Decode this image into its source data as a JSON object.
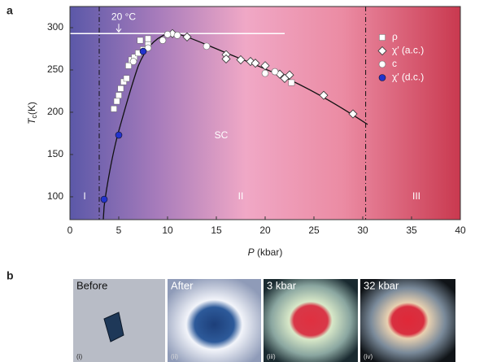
{
  "chart_data": {
    "type": "scatter",
    "panel_a_label": "a",
    "panel_b_label": "b",
    "xlabel": {
      "symbol": "P",
      "unit": "(kbar)"
    },
    "ylabel": {
      "symbol": "T",
      "subscript": "c",
      "unit": "(K)"
    },
    "xlim": [
      0,
      40
    ],
    "ylim": [
      73,
      325
    ],
    "xticks": [
      0,
      5,
      10,
      15,
      20,
      25,
      30,
      35,
      40
    ],
    "yticks": [
      100,
      150,
      200,
      250,
      300
    ],
    "phase_boundaries": [
      3,
      30.3
    ],
    "reference_line": {
      "label": "20 °C",
      "value": 293
    },
    "annotation": "SC",
    "regions": [
      "I",
      "II",
      "III"
    ],
    "series": [
      {
        "name": "ρ",
        "marker": "square",
        "color": "#ffffff",
        "x": [
          4.5,
          4.8,
          5.0,
          5.2,
          5.5,
          5.8,
          6.0,
          6.3,
          6.6,
          7.0,
          7.2,
          7.5,
          8.0,
          8.0,
          22.7
        ],
        "values": [
          204,
          213,
          220,
          228,
          236,
          240,
          255,
          262,
          265,
          270,
          285,
          274,
          287,
          280,
          235
        ]
      },
      {
        "name": "χ′ (a.c.)",
        "marker": "diamond",
        "color": "#ffffff",
        "x": [
          10.5,
          12,
          16,
          16,
          17.5,
          18.5,
          19,
          20,
          21.5,
          22,
          22.5,
          26,
          29
        ],
        "values": [
          293,
          289,
          268,
          263,
          262,
          260,
          258,
          255,
          245,
          240,
          244,
          220,
          198
        ]
      },
      {
        "name": "c",
        "marker": "circle",
        "color": "#ffffff",
        "x": [
          6.5,
          8,
          9.5,
          10,
          11,
          14,
          20,
          21
        ],
        "values": [
          260,
          276,
          285,
          292,
          291,
          278,
          246,
          248
        ]
      },
      {
        "name": "χ′ (d.c.)",
        "marker": "circle",
        "color": "#2233cc",
        "x": [
          3.5,
          5,
          7.5
        ],
        "values": [
          97,
          173,
          272
        ]
      }
    ],
    "photos": [
      {
        "label": "Before",
        "index": "(i)"
      },
      {
        "label": "After",
        "index": "(ii)"
      },
      {
        "label": "3 kbar",
        "index": "(iii)"
      },
      {
        "label": "32 kbar",
        "index": "(iv)"
      }
    ]
  }
}
